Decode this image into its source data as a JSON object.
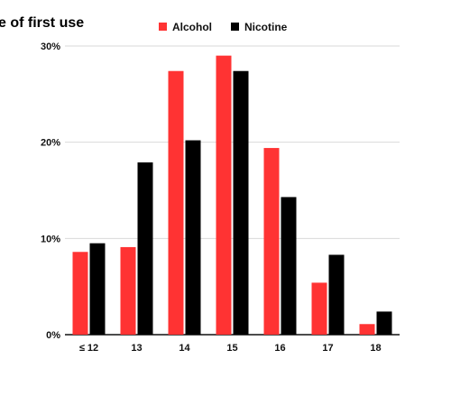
{
  "chart_data": {
    "type": "bar",
    "title": "e of first use",
    "xlabel": "",
    "ylabel": "",
    "categories": [
      "≤ 12",
      "13",
      "14",
      "15",
      "16",
      "17",
      "18"
    ],
    "series": [
      {
        "name": "Alcohol",
        "color": "#ff3333",
        "values": [
          8.6,
          9.1,
          27.4,
          29.0,
          19.4,
          5.4,
          1.1
        ]
      },
      {
        "name": "Nicotine",
        "color": "#000000",
        "values": [
          9.5,
          17.9,
          20.2,
          27.4,
          14.3,
          8.3,
          2.4
        ]
      }
    ],
    "ylim": [
      0,
      30
    ],
    "yticks": [
      0,
      10,
      20,
      30
    ],
    "ytick_labels": [
      "0%",
      "10%",
      "20%",
      "30%"
    ],
    "grid": true,
    "legend_position": "top"
  }
}
